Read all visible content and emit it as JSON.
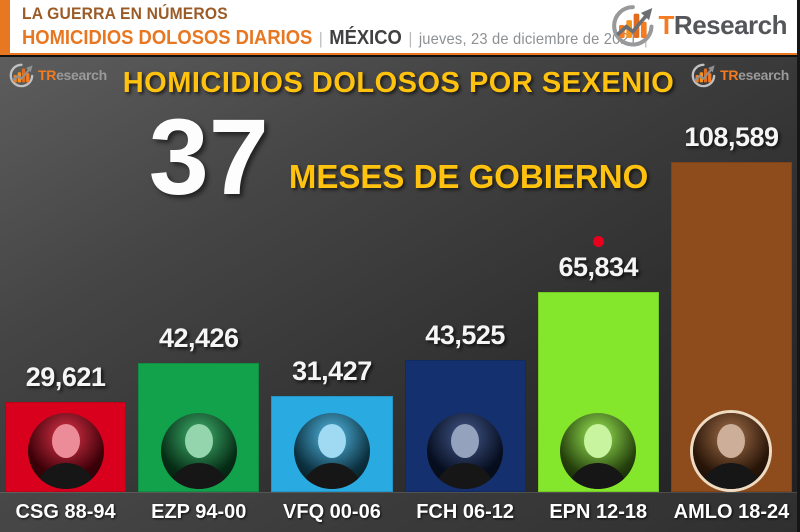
{
  "header": {
    "kicker": "LA GUERRA EN NÚMEROS",
    "subtitle": "HOMICIDIOS DOLOSOS DIARIOS",
    "sep": "|",
    "country": "MÉXICO",
    "date": "jueves, 23 de diciembre de 2021",
    "brand_accent": "T",
    "brand_rest": "Research"
  },
  "watermark": {
    "brand_accent": "TR",
    "brand_rest": "esearch"
  },
  "main": {
    "title": "HOMICIDIOS DOLOSOS POR SEXENIO",
    "big_number": "37",
    "big_caption": "MESES DE GOBIERNO"
  },
  "chart_data": {
    "type": "bar",
    "title": "HOMICIDIOS DOLOSOS POR SEXENIO",
    "annotation": "37 MESES DE GOBIERNO",
    "categories": [
      "CSG 88-94",
      "EZP 94-00",
      "VFQ 00-06",
      "FCH 06-12",
      "EPN 12-18",
      "AMLO 18-24"
    ],
    "values": [
      29621,
      42426,
      31427,
      43525,
      65834,
      108589
    ],
    "value_labels": [
      "29,621",
      "42,426",
      "31,427",
      "43,525",
      "65,834",
      "108,589"
    ],
    "bar_colors": [
      "#d8001c",
      "#12a24b",
      "#29abe2",
      "#14306f",
      "#85e72c",
      "#8e4c1d"
    ],
    "highlight_dot_index": 4,
    "highlight_dot_color": "#e8001c",
    "ylim": [
      0,
      108589
    ],
    "grid": false,
    "legend": false
  },
  "icons": {
    "brand_logo": "bar-chart-growth-swoosh-icon"
  },
  "colors": {
    "accent_orange": "#e87722",
    "kicker_brown": "#9b5b26",
    "title_gold": "#ffc20e",
    "bar_value_text": "#f5f5f5",
    "category_text": "#ffffff",
    "date_gray": "#8d9093",
    "country_dark": "#414042"
  }
}
